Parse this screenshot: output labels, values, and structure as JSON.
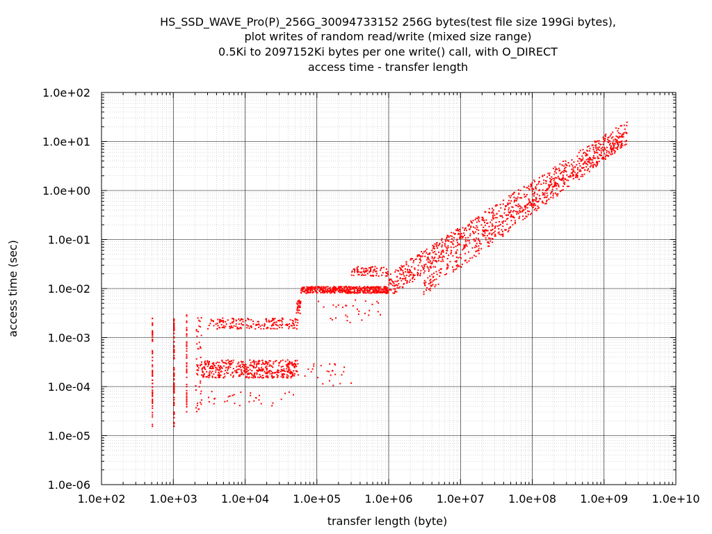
{
  "chart_data": {
    "type": "scatter",
    "title_lines": [
      "HS_SSD_WAVE_Pro(P)_256G_30094733152 256G bytes(test file size 199Gi bytes),",
      "plot writes of random read/write (mixed size range)",
      "0.5Ki to 2097152Ki bytes per one write() call, with O_DIRECT",
      "access time - transfer length"
    ],
    "xlabel": "transfer length (byte)",
    "ylabel": "access time (sec)",
    "x_scale": "log",
    "y_scale": "log",
    "xlim": [
      100,
      10000000000
    ],
    "ylim": [
      1e-06,
      100
    ],
    "x_ticks": [
      "1.0e+02",
      "1.0e+03",
      "1.0e+04",
      "1.0e+05",
      "1.0e+06",
      "1.0e+07",
      "1.0e+08",
      "1.0e+09",
      "1.0e+10"
    ],
    "y_ticks": [
      "1.0e+02",
      "1.0e+01",
      "1.0e+00",
      "1.0e-01",
      "1.0e-02",
      "1.0e-03",
      "1.0e-04",
      "1.0e-05",
      "1.0e-06"
    ],
    "grid": true,
    "marker_color": "#ff0000",
    "clusters": [
      {
        "x": [
          512,
          512
        ],
        "y": [
          1.5e-05,
          0.0025
        ],
        "n": 60
      },
      {
        "x": [
          1024,
          1024
        ],
        "y": [
          1.5e-05,
          0.0025
        ],
        "n": 80
      },
      {
        "x": [
          1536,
          1536
        ],
        "y": [
          3e-05,
          0.003
        ],
        "n": 50
      },
      {
        "x": [
          2048,
          2500
        ],
        "y": [
          3e-05,
          0.003
        ],
        "n": 50
      },
      {
        "x": [
          2500,
          55000
        ],
        "y": [
          0.00015,
          0.00035
        ],
        "n": 450
      },
      {
        "x": [
          3000,
          55000
        ],
        "y": [
          0.0015,
          0.0025
        ],
        "n": 180
      },
      {
        "x": [
          3000,
          50000
        ],
        "y": [
          4e-05,
          8e-05
        ],
        "n": 30
      },
      {
        "x": [
          52000,
          60000
        ],
        "y": [
          0.003,
          0.006
        ],
        "n": 30
      },
      {
        "x": [
          60000,
          1000000
        ],
        "y": [
          0.008,
          0.011
        ],
        "n": 450
      },
      {
        "x": [
          60000,
          300000
        ],
        "y": [
          0.0001,
          0.0003
        ],
        "n": 25
      },
      {
        "x": [
          300000,
          1000000
        ],
        "y": [
          0.018,
          0.028
        ],
        "n": 80
      },
      {
        "x": [
          100000,
          800000
        ],
        "y": [
          0.002,
          0.006
        ],
        "n": 30
      }
    ],
    "trends": [
      {
        "x": [
          1000000,
          2100000000
        ],
        "y": [
          0.012,
          15
        ],
        "n": 900,
        "spread": 0.25
      },
      {
        "x": [
          3000000,
          2000000000
        ],
        "y": [
          0.01,
          12
        ],
        "n": 350,
        "spread": 0.15
      }
    ]
  }
}
